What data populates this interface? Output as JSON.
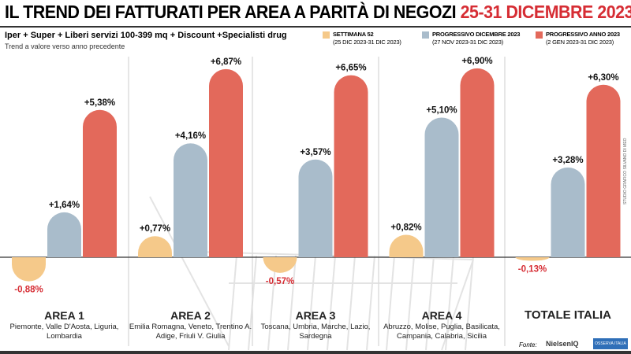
{
  "title": {
    "main": "IL TREND DEI FATTURATI PER AREA A PARITÀ DI NEGOZI",
    "highlight": "25-31 DICEMBRE 2023"
  },
  "subtitle": "Iper + Super + Liberi servizi 100-399 mq + Discount +Specialisti drug",
  "note": "Trend a valore verso anno precedente",
  "credit": "STUDIO GRAFICO SILVANO DI MEO",
  "source": {
    "label": "Fonte:",
    "brand1": "NielsenIQ",
    "brand2": "OSSERVA ITALIA"
  },
  "colors": {
    "settimana": "#f5c98a",
    "dicembre": "#a9bccb",
    "anno": "#e3695b",
    "negative_label": "#d62d34"
  },
  "chart_data": {
    "type": "bar",
    "categories": [
      "AREA 1",
      "AREA 2",
      "AREA 3",
      "AREA 4",
      "TOTALE ITALIA"
    ],
    "category_details": [
      "Piemonte, Valle D'Aosta, Liguria, Lombardia",
      "Emilia Romagna, Veneto, Trentino A. Adige, Friuli V. Giulia",
      "Toscana, Umbria, Marche, Lazio, Sardegna",
      "Abruzzo, Molise, Puglia, Basilicata, Campania, Calabria, Sicilia",
      ""
    ],
    "legend_position": "top-right",
    "series": [
      {
        "name": "SETTIMANA 52",
        "period": "(25 DIC 2023-31 DIC 2023)",
        "values": [
          -0.88,
          0.77,
          -0.57,
          0.82,
          -0.13
        ],
        "labels": [
          "-0,88%",
          "+0,77%",
          "-0,57%",
          "+0,82%",
          "-0,13%"
        ]
      },
      {
        "name": "PROGRESSIVO DICEMBRE 2023",
        "period": "(27 NOV 2023-31 DIC 2023)",
        "values": [
          1.64,
          4.16,
          3.57,
          5.1,
          3.28
        ],
        "labels": [
          "+1,64%",
          "+4,16%",
          "+3,57%",
          "+5,10%",
          "+3,28%"
        ]
      },
      {
        "name": "PROGRESSIVO ANNO 2023",
        "period": "(2 GEN 2023-31 DIC 2023)",
        "values": [
          5.38,
          6.87,
          6.65,
          6.9,
          6.3
        ],
        "labels": [
          "+5,38%",
          "+6,87%",
          "+6,65%",
          "+6,90%",
          "+6,30%"
        ]
      }
    ]
  }
}
